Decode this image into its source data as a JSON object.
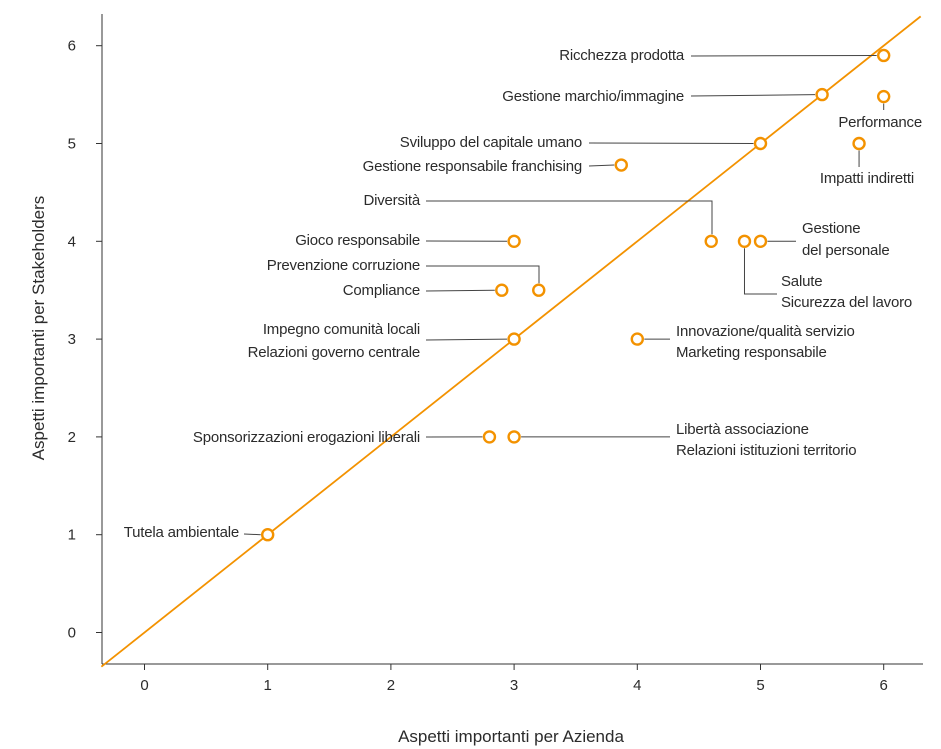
{
  "chart_data": {
    "type": "scatter",
    "title": "",
    "xlabel": "Aspetti importanti per Azienda",
    "ylabel": "Aspetti importanti per Stakeholders",
    "xlim": [
      -0.35,
      6.3
    ],
    "ylim": [
      -0.35,
      6.3
    ],
    "x_ticks": [
      0,
      1,
      2,
      3,
      4,
      5,
      6
    ],
    "y_ticks": [
      0,
      1,
      2,
      3,
      4,
      5,
      6
    ],
    "grid": false,
    "colors": {
      "marker": "#f39200",
      "diagonal": "#f39200",
      "axis": "#333333",
      "leader": "#444444"
    },
    "reference_line": {
      "from": [
        -0.35,
        -0.35
      ],
      "to": [
        6.3,
        6.3
      ]
    },
    "points": [
      {
        "x": 6.0,
        "y": 5.9
      },
      {
        "x": 5.5,
        "y": 5.5
      },
      {
        "x": 6.0,
        "y": 5.48
      },
      {
        "x": 5.0,
        "y": 5.0
      },
      {
        "x": 5.8,
        "y": 5.0
      },
      {
        "x": 3.87,
        "y": 4.78
      },
      {
        "x": 4.6,
        "y": 4.0
      },
      {
        "x": 4.87,
        "y": 4.0
      },
      {
        "x": 5.0,
        "y": 4.0
      },
      {
        "x": 3.0,
        "y": 4.0
      },
      {
        "x": 3.2,
        "y": 3.5
      },
      {
        "x": 2.9,
        "y": 3.5
      },
      {
        "x": 3.0,
        "y": 3.0
      },
      {
        "x": 4.0,
        "y": 3.0
      },
      {
        "x": 2.8,
        "y": 2.0
      },
      {
        "x": 3.0,
        "y": 2.0
      },
      {
        "x": 1.0,
        "y": 1.0
      }
    ],
    "labels": [
      "Ricchezza prodotta",
      "Gestione marchio/immagine",
      "Performance",
      "Sviluppo del capitale umano",
      "Gestione responsabile franchising",
      "Impatti indiretti",
      "Diversità",
      "Gestione",
      "del personale",
      "Gioco responsabile",
      "Prevenzione corruzione",
      "Salute",
      "Sicurezza del lavoro",
      "Compliance",
      "Impegno comunità locali",
      "Relazioni governo centrale",
      "Innovazione/qualità servizio",
      "Marketing responsabile",
      "Sponsorizzazioni erogazioni liberali",
      "Libertà associazione",
      "Relazioni istituzioni territorio",
      "Tutela ambientale"
    ]
  }
}
